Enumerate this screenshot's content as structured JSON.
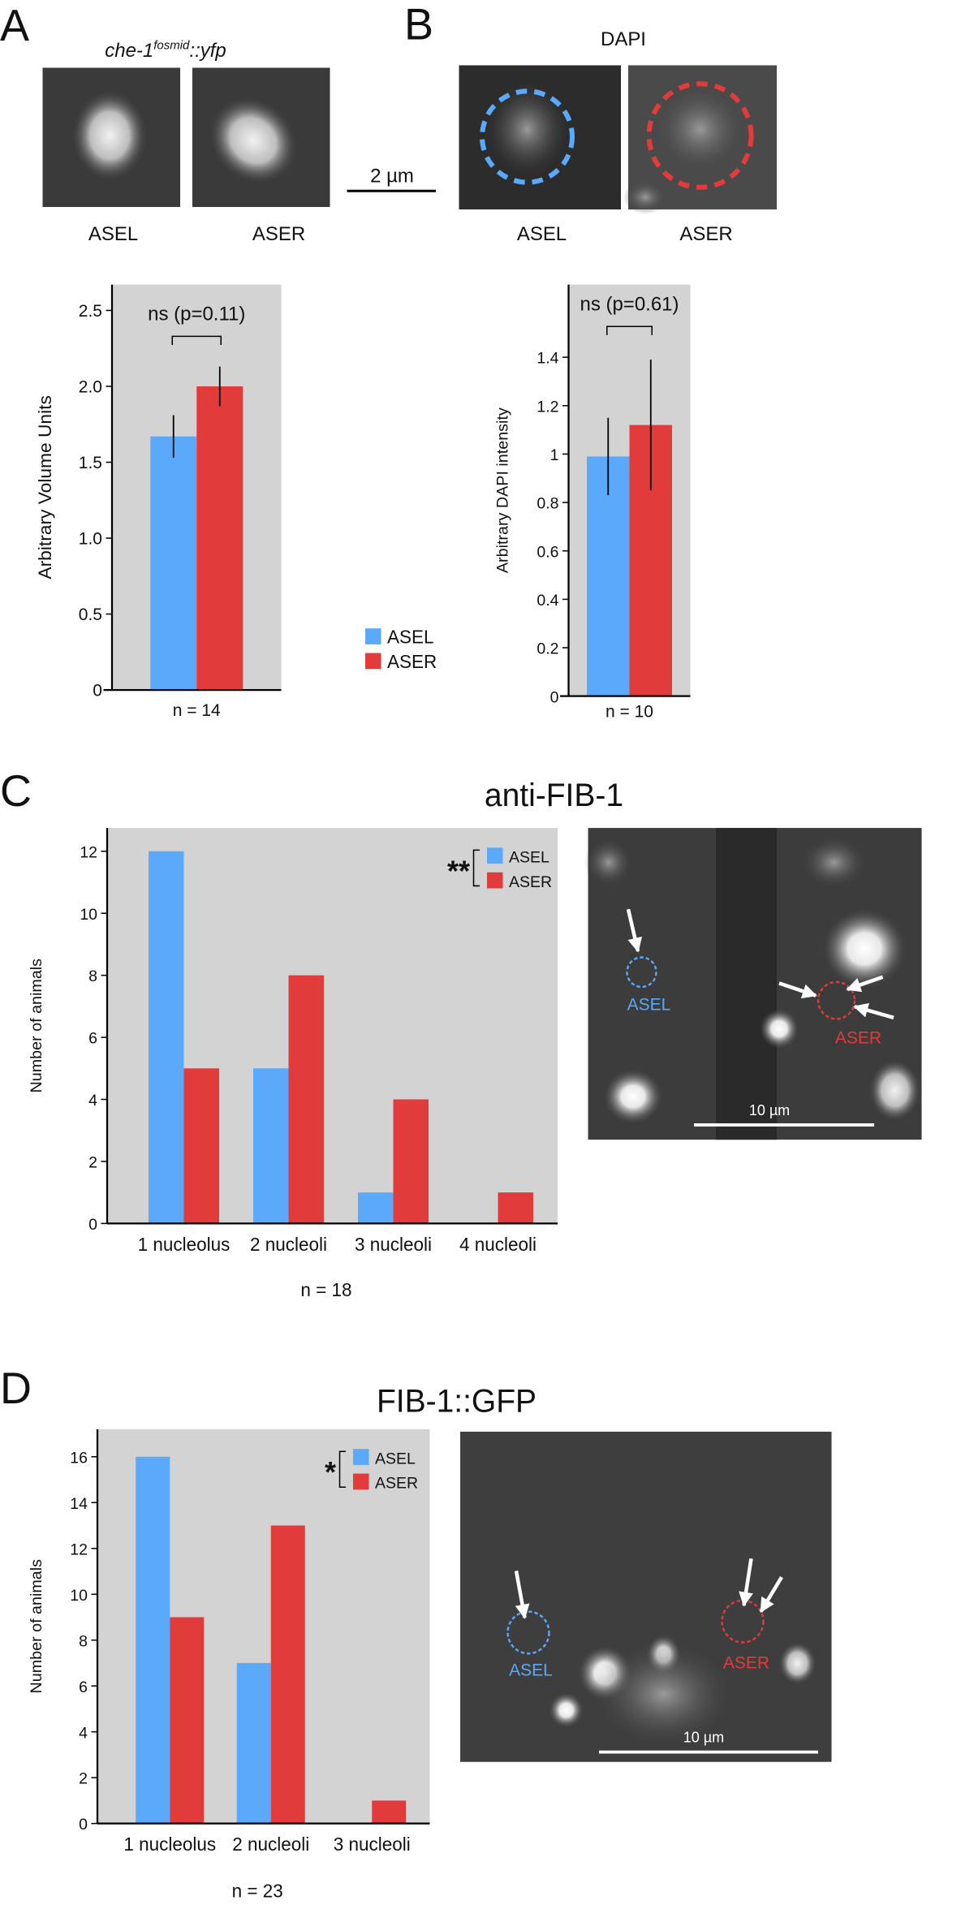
{
  "figure": {
    "panel_labels": [
      "A",
      "B",
      "C",
      "D"
    ],
    "yfp_label": {
      "gene": "che-1",
      "superscript": "fosmid",
      "suffix": "::yfp"
    },
    "dapi_label": "DAPI",
    "scale_bar_a": "2 µm",
    "image_captions_a": [
      "ASEL",
      "ASER"
    ],
    "image_captions_b": [
      "ASEL",
      "ASER"
    ],
    "image_c": {
      "labels": [
        "ASEL",
        "ASER"
      ],
      "scale_bar": "10 µm"
    },
    "image_d": {
      "labels": [
        "ASEL",
        "ASER"
      ],
      "scale_bar": "10 µm"
    }
  },
  "chart_data": [
    {
      "type": "bar",
      "categories": [
        null
      ],
      "x_label": "n = 14",
      "y_label": "Arbitrary Volume Units",
      "annotation": "ns (p=0.11)",
      "legend": true,
      "series": [
        {
          "name": "ASEL",
          "color": "#5aa9fa",
          "values": [
            1.67
          ],
          "errors": [
            0.14
          ]
        },
        {
          "name": "ASER",
          "color": "#e23b3b",
          "values": [
            2.0
          ],
          "errors": [
            0.13
          ]
        }
      ],
      "ylim": [
        0,
        2.67
      ],
      "yticks": [
        0,
        0.5,
        {
          "value": 1,
          "label": "1.0"
        },
        1.5,
        {
          "value": 2,
          "label": "2.0"
        },
        2.5
      ]
    },
    {
      "type": "bar",
      "categories": [
        null
      ],
      "x_label": "n = 10",
      "y_label": "Arbitrary DAPI intensity",
      "annotation": "ns (p=0.61)",
      "legend": false,
      "series": [
        {
          "color": "#5aa9fa",
          "values": [
            0.99
          ],
          "errors": [
            0.16
          ]
        },
        {
          "color": "#e23b3b",
          "values": [
            1.12
          ],
          "errors": [
            0.27
          ]
        }
      ],
      "ylim": [
        0,
        1.7
      ],
      "yticks": [
        0,
        0.2,
        0.4,
        0.6,
        0.8,
        1,
        1.2,
        1.4
      ]
    },
    {
      "type": "bar",
      "title": "anti-FIB-1",
      "categories": [
        "1 nucleolus",
        "2 nucleoli",
        "3 nucleoli",
        "4 nucleoli"
      ],
      "x_label": "n = 18",
      "y_label": "Number of animals",
      "significance": "**",
      "legend": true,
      "series": [
        {
          "name": "ASEL",
          "color": "#5aa9fa",
          "values": [
            12,
            5,
            1,
            0
          ]
        },
        {
          "name": "ASER",
          "color": "#e23b3b",
          "values": [
            5,
            8,
            4,
            1
          ]
        }
      ],
      "ylim": [
        0,
        12.75
      ],
      "yticks": [
        0,
        2,
        4,
        6,
        8,
        10,
        12
      ]
    },
    {
      "type": "bar",
      "title": "FIB-1::GFP",
      "categories": [
        "1 nucleolus",
        "2 nucleoli",
        "3 nucleoli"
      ],
      "x_label": "n = 23",
      "y_label": "Number of animals",
      "significance": "*",
      "legend": true,
      "series": [
        {
          "name": "ASEL",
          "color": "#5aa9fa",
          "values": [
            16,
            7,
            0
          ]
        },
        {
          "name": "ASER",
          "color": "#e23b3b",
          "values": [
            9,
            13,
            1
          ]
        }
      ],
      "ylim": [
        0,
        17.2
      ],
      "yticks": [
        0,
        2,
        4,
        6,
        8,
        10,
        12,
        14,
        16
      ]
    }
  ]
}
